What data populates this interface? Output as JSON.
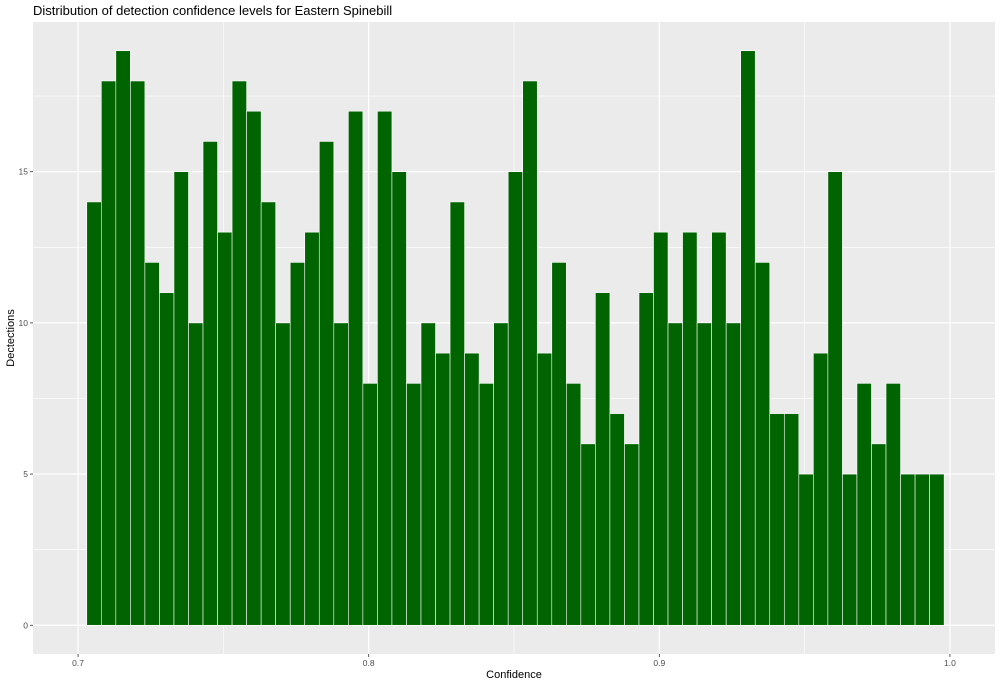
{
  "chart_data": {
    "type": "bar",
    "title": "Distribution of detection confidence levels for Eastern Spinebill",
    "xlabel": "Confidence",
    "ylabel": "Dectections",
    "xlim": [
      0.6845,
      1.0155
    ],
    "ylim": [
      -0.95,
      19.95
    ],
    "bin_start": 0.703,
    "bin_width": 0.005,
    "x_ticks": [
      0.7,
      0.8,
      0.9,
      1.0
    ],
    "x_tick_labels": [
      "0.7",
      "0.8",
      "0.9",
      "1.0"
    ],
    "y_ticks": [
      0,
      5,
      10,
      15
    ],
    "y_tick_labels": [
      "0",
      "5",
      "10",
      "15"
    ],
    "values": [
      14,
      18,
      19,
      18,
      12,
      11,
      15,
      10,
      16,
      13,
      18,
      17,
      14,
      10,
      12,
      13,
      16,
      10,
      17,
      8,
      17,
      15,
      8,
      10,
      9,
      14,
      9,
      8,
      10,
      15,
      18,
      9,
      12,
      8,
      6,
      11,
      7,
      6,
      11,
      13,
      10,
      13,
      10,
      13,
      10,
      19,
      12,
      7,
      7,
      5,
      9,
      15,
      5,
      8,
      6,
      8,
      5,
      5,
      5
    ],
    "grid": true,
    "colors": {
      "bar_fill": "#006400",
      "bar_outline": "#ffffff",
      "panel_background": "#ebebeb",
      "grid_major": "#ffffff",
      "tick_label": "#4d4d4d",
      "text": "#000000"
    }
  }
}
